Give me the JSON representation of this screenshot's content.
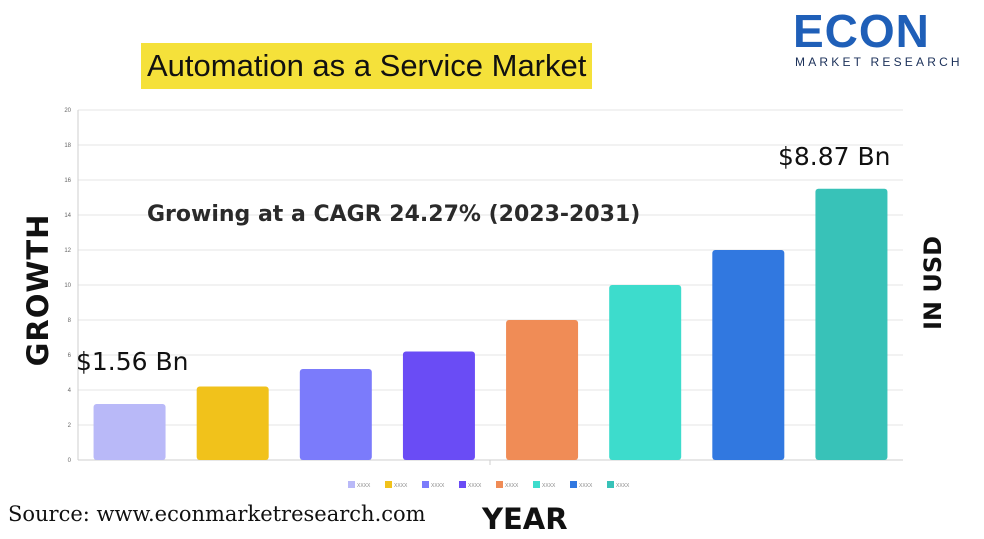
{
  "title": "Automation as a Service Market",
  "logo": {
    "word": "ECON",
    "sub": "MARKET RESEARCH"
  },
  "source": "Source: www.econmarketresearch.com",
  "colors": {
    "title_highlight": "#f5e13a",
    "logo_blue": "#1f5fb8",
    "logo_navy": "#1a2f58"
  },
  "chart_data": {
    "type": "bar",
    "title": "Automation as a Service Market",
    "subtitle": "Growing at a CAGR 24.27% (2023-2031)",
    "xlabel": "YEAR",
    "ylabel": "GROWTH",
    "y2label": "IN USD",
    "ylim": [
      0,
      20
    ],
    "yticks": [
      0,
      2,
      4,
      6,
      8,
      10,
      12,
      14,
      16,
      18,
      20
    ],
    "grid": true,
    "legend_position": "bottom",
    "categories": [
      "XXXX",
      "XXXX",
      "XXXX",
      "XXXX",
      "XXXX",
      "XXXX",
      "XXXX",
      "XXXX"
    ],
    "values": [
      3.2,
      4.2,
      5.2,
      6.2,
      8.0,
      10.0,
      12.0,
      15.5
    ],
    "bar_colors": [
      "#b9b9f8",
      "#f1c21b",
      "#7b7bfb",
      "#6a4cf5",
      "#f08c56",
      "#3ddccc",
      "#3178e0",
      "#38c2b8"
    ],
    "annotations": [
      {
        "text": "$1.56 Bn",
        "anchor": "first-bar"
      },
      {
        "text": "$8.87 Bn",
        "anchor": "last-bar"
      }
    ]
  }
}
